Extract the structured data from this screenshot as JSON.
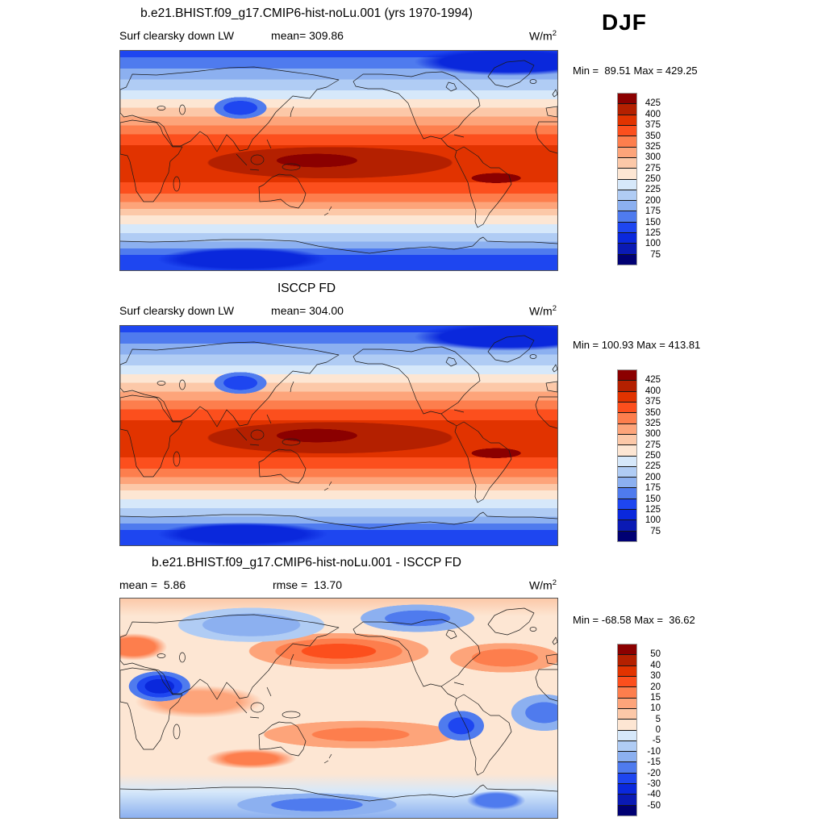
{
  "season": "DJF",
  "units": {
    "base": "W/m",
    "exponent": "2"
  },
  "colorbar_colors": [
    "#8b0000",
    "#b42000",
    "#e13300",
    "#fc4f1d",
    "#fd7e4d",
    "#fda47a",
    "#fcc8a8",
    "#fde6d3",
    "#d6e8fa",
    "#b0ccf4",
    "#8cb0f0",
    "#4f7bee",
    "#1e46f0",
    "#0a28dc",
    "#0a1ab4",
    "#000073"
  ],
  "panels": [
    {
      "title": "b.e21.BHIST.f09_g17.CMIP6-hist-noLu.001 (yrs 1970-1994)",
      "left_label": "Surf clearsky down LW",
      "mid_label": "mean= 309.86",
      "minmax": "Min =  89.51 Max = 429.25",
      "colorbar_ticks": [
        "425",
        "400",
        "375",
        "350",
        "325",
        "300",
        "275",
        "250",
        "225",
        "200",
        "175",
        "150",
        "125",
        "100",
        "75"
      ]
    },
    {
      "title": "ISCCP FD",
      "left_label": "Surf clearsky down LW",
      "mid_label": "mean= 304.00",
      "minmax": "Min = 100.93 Max = 413.81",
      "colorbar_ticks": [
        "425",
        "400",
        "375",
        "350",
        "325",
        "300",
        "275",
        "250",
        "225",
        "200",
        "175",
        "150",
        "125",
        "100",
        "75"
      ]
    },
    {
      "title": "b.e21.BHIST.f09_g17.CMIP6-hist-noLu.001 - ISCCP FD",
      "left_label": "mean =  5.86",
      "mid_label": "rmse =  13.70",
      "minmax": "Min = -68.58 Max =  36.62",
      "colorbar_ticks": [
        "50",
        "40",
        "30",
        "20",
        "15",
        "10",
        "5",
        "0",
        "-5",
        "-10",
        "-15",
        "-20",
        "-30",
        "-40",
        "-50"
      ]
    }
  ],
  "chart_data": [
    {
      "type": "heatmap",
      "title": "b.e21.BHIST.f09_g17.CMIP6-hist-noLu.001 (yrs 1970-1994)",
      "variable": "Surf clearsky down LW",
      "season": "DJF",
      "units": "W/m2",
      "projection": "global lat-lon, Pacific-centered (0-360E, 90N-90S)",
      "mean": 309.86,
      "min": 89.51,
      "max": 429.25,
      "contour_levels": [
        75,
        100,
        125,
        150,
        175,
        200,
        225,
        250,
        275,
        300,
        325,
        350,
        375,
        400,
        425
      ],
      "palette_classes": 16,
      "legend_position": "right",
      "description": "Zonal structure: dark blue at both poles, light bands in midlatitudes, dark red maximum (>400) in the tropics; blue minimum over Tibetan Plateau and Antarctica"
    },
    {
      "type": "heatmap",
      "title": "ISCCP FD",
      "variable": "Surf clearsky down LW",
      "season": "DJF",
      "units": "W/m2",
      "projection": "global lat-lon, Pacific-centered (0-360E, 90N-90S)",
      "mean": 304.0,
      "min": 100.93,
      "max": 413.81,
      "contour_levels": [
        75,
        100,
        125,
        150,
        175,
        200,
        225,
        250,
        275,
        300,
        325,
        350,
        375,
        400,
        425
      ],
      "palette_classes": 16,
      "legend_position": "right",
      "description": "Same zonal blue-red structure as model panel with broader tropical dark-red maximum"
    },
    {
      "type": "heatmap",
      "title": "b.e21.BHIST.f09_g17.CMIP6-hist-noLu.001 - ISCCP FD",
      "variable": "Surf clearsky down LW difference",
      "season": "DJF",
      "units": "W/m2",
      "projection": "global lat-lon, Pacific-centered (0-360E, 90N-90S)",
      "mean": 5.86,
      "rmse": 13.7,
      "min": -68.58,
      "max": 36.62,
      "contour_levels": [
        -50,
        -40,
        -30,
        -20,
        -15,
        -10,
        -5,
        0,
        5,
        10,
        15,
        20,
        30,
        40,
        50
      ],
      "palette_classes": 16,
      "legend_position": "right",
      "description": "Patchy differences: positive (red) over N Pacific, N Atlantic, S Pacific and S America; negative (blue) over Arabia/Middle East, N Asia, Arctic Canada, SE Pacific and Antarctic coast"
    }
  ]
}
